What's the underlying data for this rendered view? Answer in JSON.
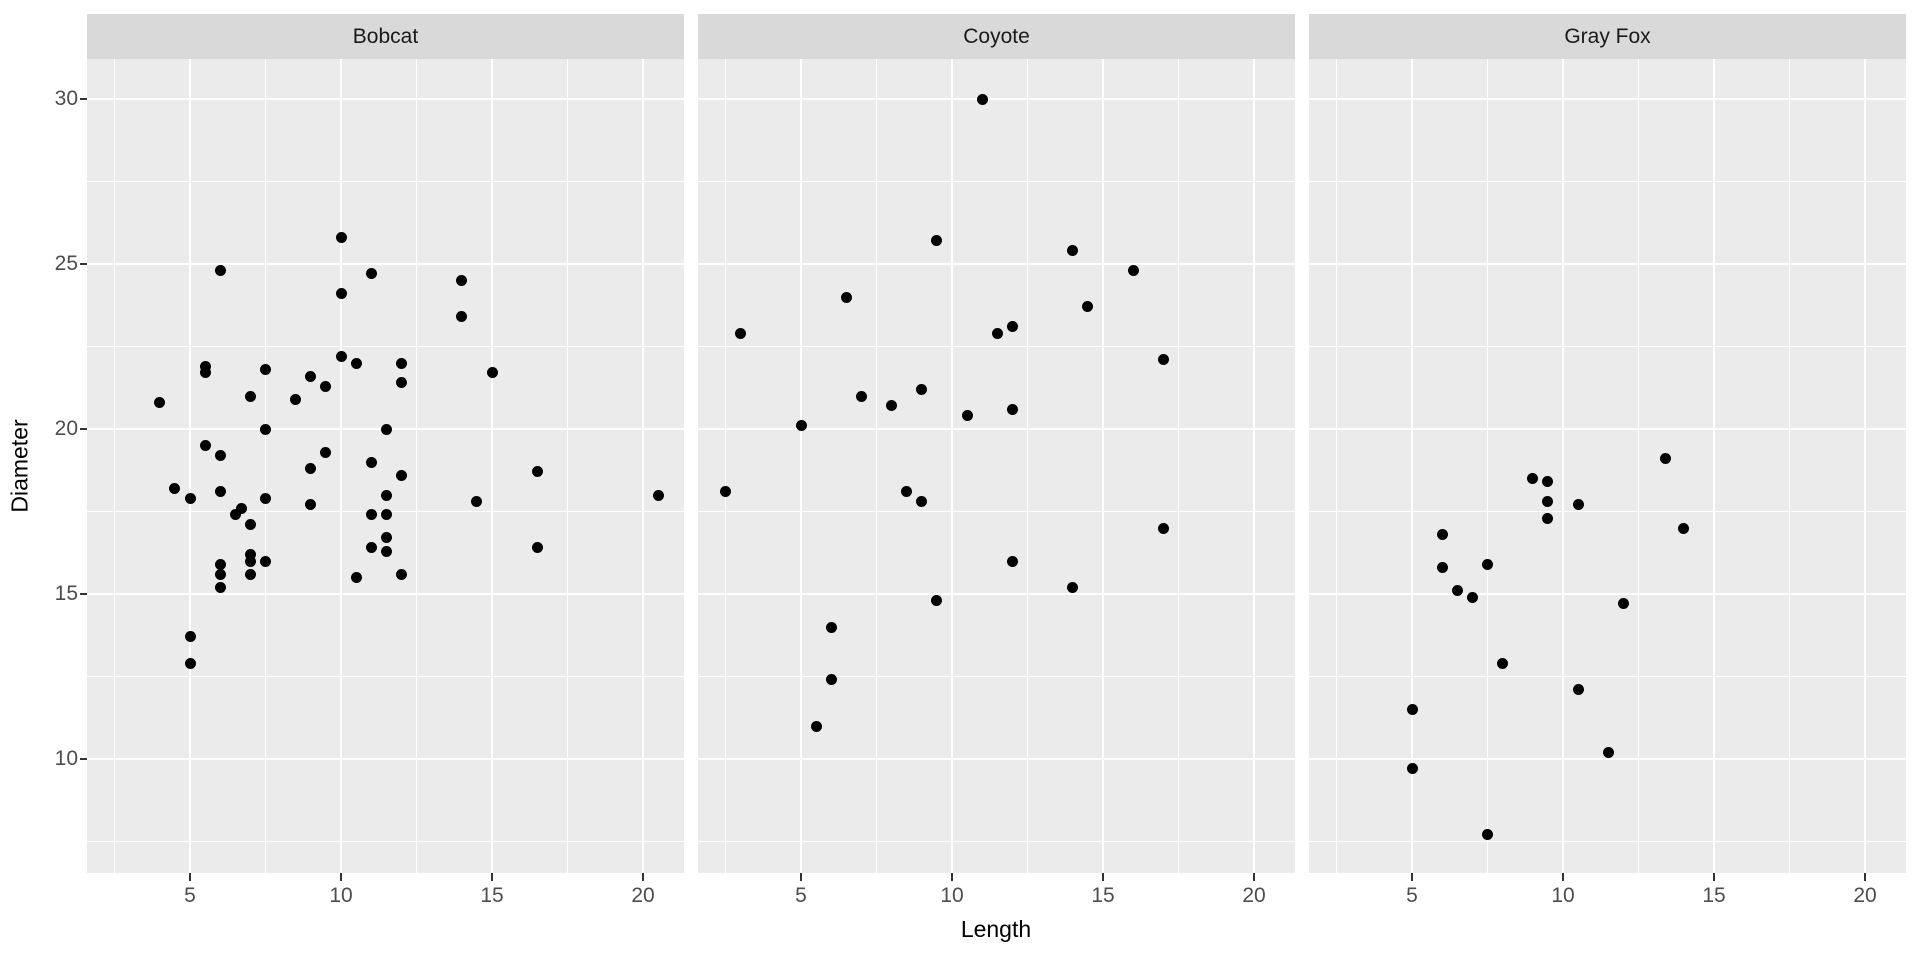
{
  "chart_data": {
    "type": "scatter",
    "title": "",
    "xlabel": "Length",
    "ylabel": "Diameter",
    "x_ticks": [
      5,
      10,
      15,
      20
    ],
    "y_ticks": [
      10,
      15,
      20,
      25,
      30
    ],
    "x_minor_gridlines": [
      2.5,
      7.5,
      12.5,
      17.5
    ],
    "y_minor_gridlines": [
      7.5,
      12.5,
      17.5,
      22.5,
      27.5
    ],
    "xlim": [
      1.6,
      21.4
    ],
    "ylim": [
      6.6,
      31.2
    ],
    "grid": true,
    "legend": "none",
    "point_color": "#000000",
    "facets": [
      {
        "name": "Bobcat",
        "points": [
          [
            10,
            25.8
          ],
          [
            6,
            24.8
          ],
          [
            11,
            24.7
          ],
          [
            14,
            24.5
          ],
          [
            10,
            24.1
          ],
          [
            14,
            23.4
          ],
          [
            10,
            22.2
          ],
          [
            10.5,
            22
          ],
          [
            12,
            22
          ],
          [
            5.5,
            21.9
          ],
          [
            7.5,
            21.8
          ],
          [
            5.5,
            21.7
          ],
          [
            15,
            21.7
          ],
          [
            9,
            21.6
          ],
          [
            12,
            21.4
          ],
          [
            9.5,
            21.3
          ],
          [
            7,
            21
          ],
          [
            8.5,
            20.9
          ],
          [
            4,
            20.8
          ],
          [
            7.5,
            20
          ],
          [
            11.5,
            20
          ],
          [
            5.5,
            19.5
          ],
          [
            9.5,
            19.3
          ],
          [
            6,
            19.2
          ],
          [
            11,
            19
          ],
          [
            9,
            18.8
          ],
          [
            16.5,
            18.7
          ],
          [
            12,
            18.6
          ],
          [
            4.5,
            18.2
          ],
          [
            6,
            18.1
          ],
          [
            11.5,
            18
          ],
          [
            20.5,
            18
          ],
          [
            5,
            17.9
          ],
          [
            7.5,
            17.9
          ],
          [
            14.5,
            17.8
          ],
          [
            9,
            17.7
          ],
          [
            6.7,
            17.6
          ],
          [
            11,
            17.4
          ],
          [
            11.5,
            17.4
          ],
          [
            6.5,
            17.4
          ],
          [
            7,
            17.1
          ],
          [
            11.5,
            16.7
          ],
          [
            11,
            16.4
          ],
          [
            16.5,
            16.4
          ],
          [
            11.5,
            16.3
          ],
          [
            7,
            16.2
          ],
          [
            7.5,
            16
          ],
          [
            7,
            16
          ],
          [
            6,
            15.9
          ],
          [
            12,
            15.6
          ],
          [
            7,
            15.6
          ],
          [
            6,
            15.6
          ],
          [
            10.5,
            15.5
          ],
          [
            6,
            15.2
          ],
          [
            5,
            13.7
          ],
          [
            5,
            12.9
          ]
        ]
      },
      {
        "name": "Coyote",
        "points": [
          [
            11,
            30
          ],
          [
            9.5,
            25.7
          ],
          [
            14,
            25.4
          ],
          [
            16,
            24.8
          ],
          [
            6.5,
            24
          ],
          [
            14.5,
            23.7
          ],
          [
            12,
            23.1
          ],
          [
            3,
            22.9
          ],
          [
            11.5,
            22.9
          ],
          [
            17,
            22.1
          ],
          [
            9,
            21.2
          ],
          [
            7,
            21
          ],
          [
            8,
            20.7
          ],
          [
            12,
            20.6
          ],
          [
            10.5,
            20.4
          ],
          [
            5,
            20.1
          ],
          [
            2.5,
            18.1
          ],
          [
            8.5,
            18.1
          ],
          [
            9,
            17.8
          ],
          [
            17,
            17
          ],
          [
            12,
            16
          ],
          [
            14,
            15.2
          ],
          [
            9.5,
            14.8
          ],
          [
            6,
            14
          ],
          [
            6,
            12.4
          ],
          [
            5.5,
            11
          ]
        ]
      },
      {
        "name": "Gray Fox",
        "points": [
          [
            13.4,
            19.1
          ],
          [
            9,
            18.5
          ],
          [
            9.5,
            18.4
          ],
          [
            9.5,
            17.8
          ],
          [
            10.5,
            17.7
          ],
          [
            9.5,
            17.3
          ],
          [
            14,
            17
          ],
          [
            6,
            16.8
          ],
          [
            7.5,
            15.9
          ],
          [
            6,
            15.8
          ],
          [
            6.5,
            15.1
          ],
          [
            7,
            14.9
          ],
          [
            12,
            14.7
          ],
          [
            8,
            12.9
          ],
          [
            10.5,
            12.1
          ],
          [
            5,
            11.5
          ],
          [
            11.5,
            10.2
          ],
          [
            5,
            9.7
          ],
          [
            7.5,
            7.7
          ]
        ]
      }
    ]
  },
  "style": {
    "background": "#FFFFFF",
    "panel_bg": "#EBEBEB",
    "strip_bg": "#D9D9D9",
    "gridline_color": "#FFFFFF",
    "point_color": "#000000",
    "tick_label_color": "#4D4D4D",
    "axis_title_color": "#000000",
    "tick_mark_color": "#333333"
  }
}
